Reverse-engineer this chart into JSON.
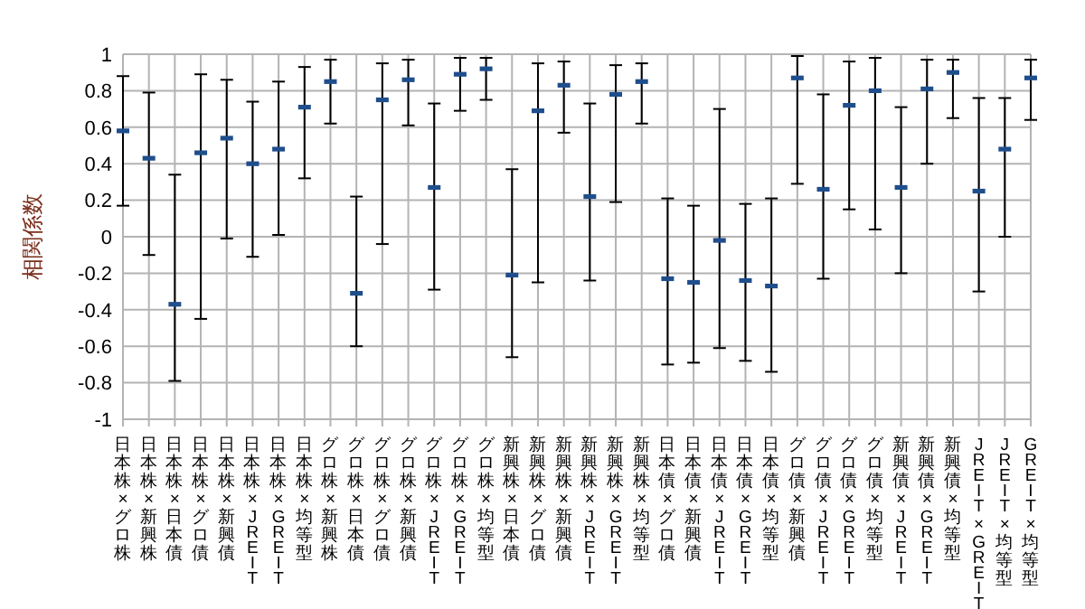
{
  "chart_data": {
    "type": "scatter",
    "ylabel": "相関係数",
    "categories": [
      "日本株×グロ株",
      "日本株×新興株",
      "日本株×日本債",
      "日本株×グロ債",
      "日本株×新興債",
      "日本株×JREIT",
      "日本株×GREIT",
      "日本株×均等型",
      "グロ株×新興株",
      "グロ株×日本債",
      "グロ株×グロ債",
      "グロ株×新興債",
      "グロ株×JREIT",
      "グロ株×GREIT",
      "グロ株×均等型",
      "新興株×日本債",
      "新興株×グロ債",
      "新興株×新興債",
      "新興株×JREIT",
      "新興株×GREIT",
      "新興株×均等型",
      "日本債×グロ債",
      "日本債×新興債",
      "日本債×JREIT",
      "日本債×GREIT",
      "日本債×均等型",
      "グロ債×新興債",
      "グロ債×JREIT",
      "グロ債×GREIT",
      "グロ債×均等型",
      "新興債×JREIT",
      "新興債×GREIT",
      "新興債×均等型",
      "JREIT×GREIT",
      "JREIT×均等型",
      "GREIT×均等型"
    ],
    "values": [
      0.58,
      0.43,
      -0.37,
      0.46,
      0.54,
      0.4,
      0.48,
      0.71,
      0.85,
      -0.31,
      0.75,
      0.86,
      0.27,
      0.89,
      0.92,
      -0.21,
      0.69,
      0.83,
      0.22,
      0.78,
      0.85,
      -0.23,
      -0.25,
      -0.02,
      -0.24,
      -0.27,
      0.87,
      0.26,
      0.72,
      0.8,
      0.27,
      0.81,
      0.9,
      0.25,
      0.48,
      0.87
    ],
    "errors": [
      [
        0.17,
        0.88
      ],
      [
        -0.1,
        0.79
      ],
      [
        -0.79,
        0.34
      ],
      [
        -0.45,
        0.89
      ],
      [
        -0.01,
        0.86
      ],
      [
        -0.11,
        0.74
      ],
      [
        0.01,
        0.85
      ],
      [
        0.32,
        0.93
      ],
      [
        0.62,
        0.97
      ],
      [
        -0.6,
        0.22
      ],
      [
        -0.04,
        0.95
      ],
      [
        0.61,
        0.97
      ],
      [
        -0.29,
        0.73
      ],
      [
        0.69,
        0.98
      ],
      [
        0.75,
        0.98
      ],
      [
        -0.66,
        0.37
      ],
      [
        -0.25,
        0.95
      ],
      [
        0.57,
        0.96
      ],
      [
        -0.24,
        0.73
      ],
      [
        0.19,
        0.94
      ],
      [
        0.62,
        0.95
      ],
      [
        -0.7,
        0.21
      ],
      [
        -0.69,
        0.17
      ],
      [
        -0.61,
        0.7
      ],
      [
        -0.68,
        0.18
      ],
      [
        -0.74,
        0.21
      ],
      [
        0.29,
        0.99
      ],
      [
        -0.23,
        0.78
      ],
      [
        0.15,
        0.96
      ],
      [
        0.04,
        0.98
      ],
      [
        -0.2,
        0.71
      ],
      [
        0.4,
        0.97
      ],
      [
        0.65,
        0.97
      ],
      [
        -0.3,
        0.76
      ],
      [
        0.0,
        0.76
      ],
      [
        0.64,
        0.97
      ]
    ],
    "color": "#1f4e8c",
    "ylim": [
      -1,
      1
    ],
    "yticks": [
      -1,
      -0.8,
      -0.6,
      -0.4,
      -0.2,
      0,
      0.2,
      0.4,
      0.6,
      0.8,
      1
    ],
    "grid": true
  }
}
